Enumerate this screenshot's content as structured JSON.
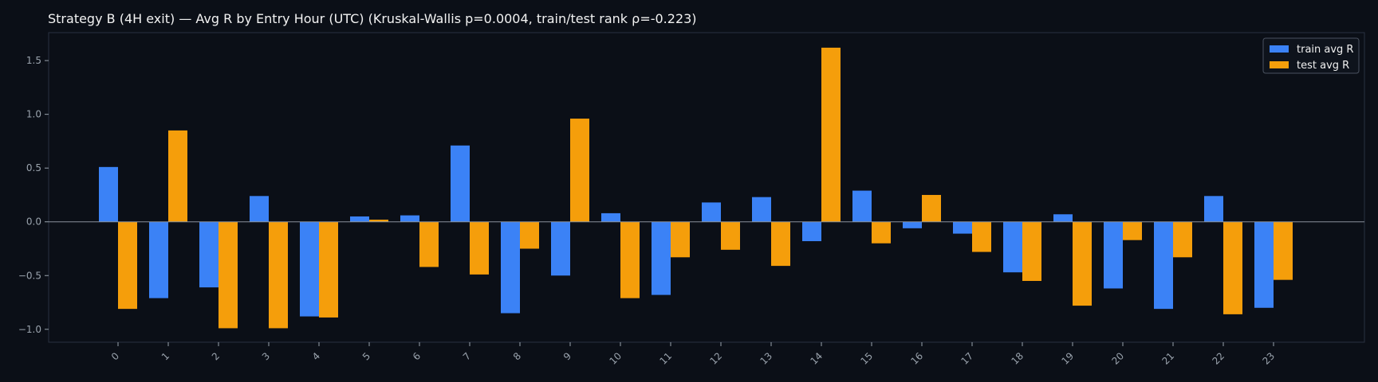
{
  "chart_data": {
    "type": "bar",
    "title": "Strategy B (4H exit) — Avg R by Entry Hour (UTC) (Kruskal-Wallis p=0.0004, train/test rank ρ=-0.223)",
    "xlabel": "",
    "ylabel": "",
    "categories": [
      "0",
      "1",
      "2",
      "3",
      "4",
      "5",
      "6",
      "7",
      "8",
      "9",
      "10",
      "11",
      "12",
      "13",
      "14",
      "15",
      "16",
      "17",
      "18",
      "19",
      "20",
      "21",
      "22",
      "23"
    ],
    "series": [
      {
        "name": "train avg R",
        "color": "#3b82f6",
        "values": [
          0.51,
          -0.71,
          -0.61,
          0.24,
          -0.88,
          0.05,
          0.06,
          0.71,
          -0.85,
          -0.5,
          0.08,
          -0.68,
          0.18,
          0.23,
          -0.18,
          0.29,
          -0.06,
          -0.11,
          -0.47,
          0.07,
          -0.62,
          -0.81,
          0.24,
          -0.8
        ]
      },
      {
        "name": "test avg R",
        "color": "#f59e0b",
        "values": [
          -0.81,
          0.85,
          -0.99,
          -0.99,
          -0.89,
          0.02,
          -0.42,
          -0.49,
          -0.25,
          0.96,
          -0.71,
          -0.33,
          -0.26,
          -0.41,
          1.62,
          -0.2,
          0.25,
          -0.28,
          -0.55,
          -0.78,
          -0.17,
          -0.33,
          -0.86,
          -0.54
        ]
      }
    ],
    "ylim": [
      -1.12,
      1.76
    ],
    "yticks": [
      -1.0,
      -0.5,
      0.0,
      0.5,
      1.0,
      1.5
    ],
    "ytick_labels": [
      "−1.0",
      "−0.5",
      "0.0",
      "0.5",
      "1.0",
      "1.5"
    ],
    "grid": false,
    "legend_position": "top-right",
    "colors": {
      "background": "#0b0f17",
      "axes_frame": "#2a3240",
      "zero_line": "#8a919c"
    }
  }
}
